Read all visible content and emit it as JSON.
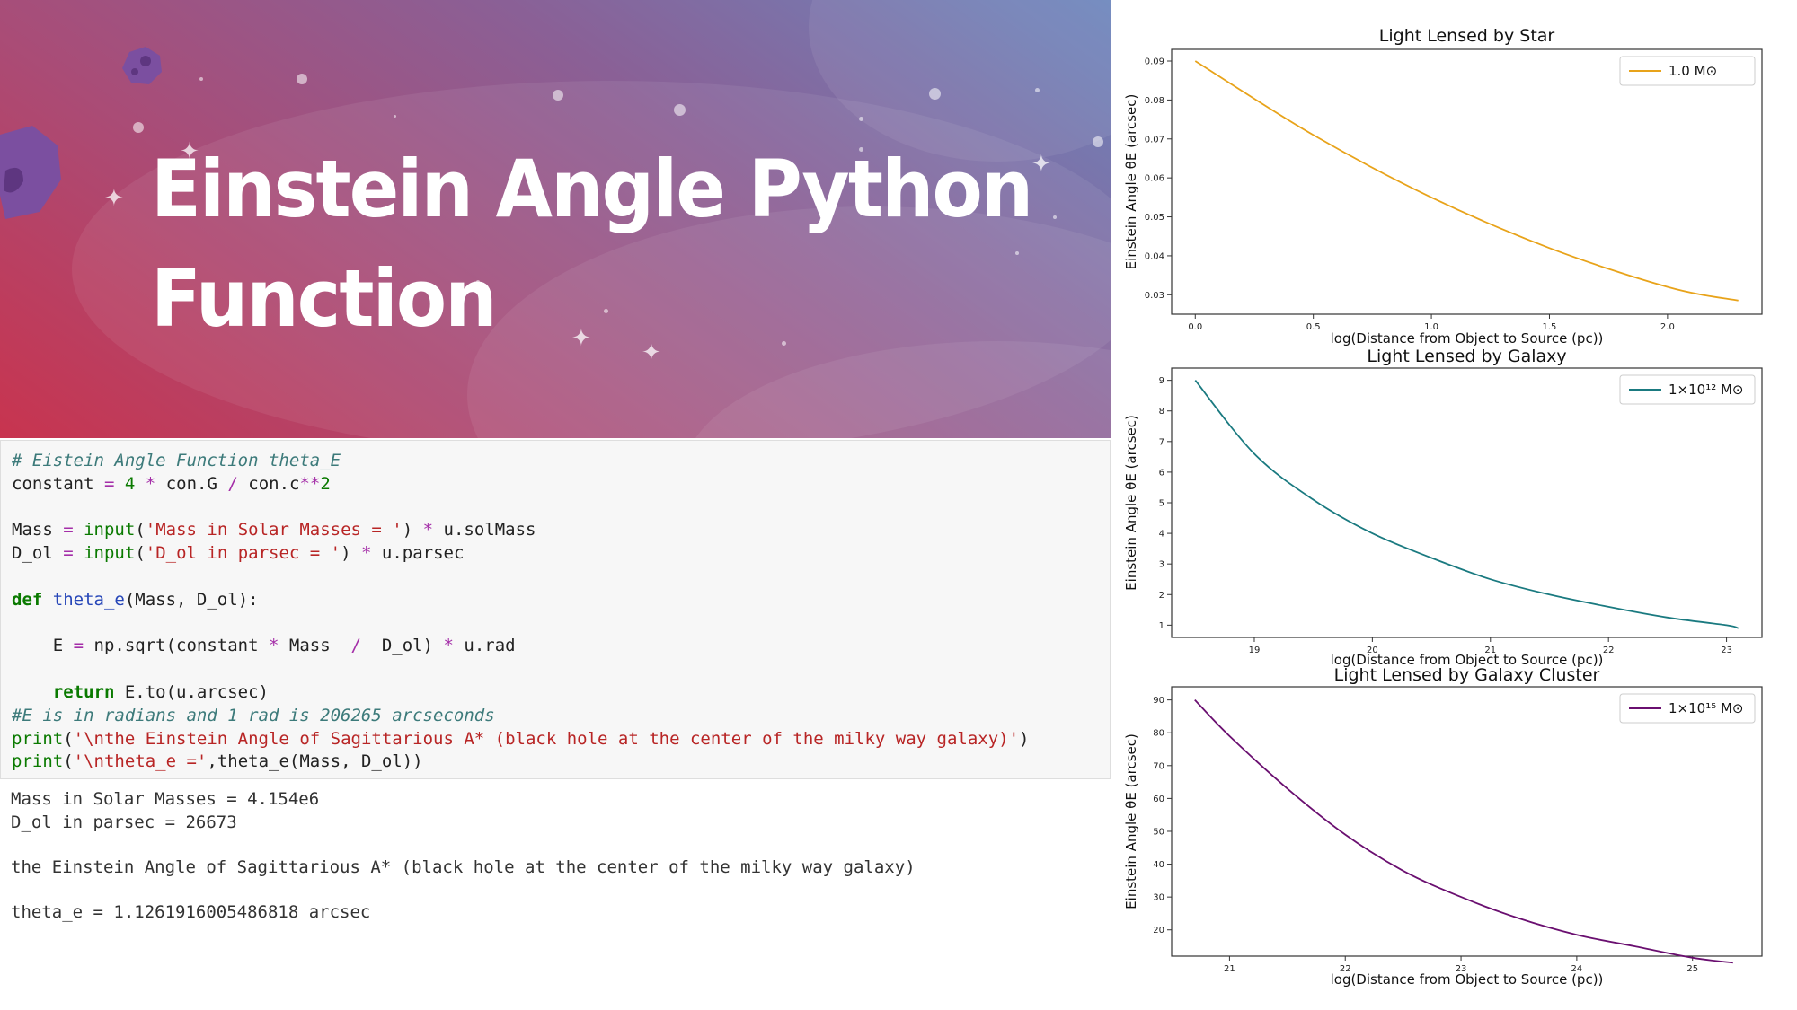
{
  "banner": {
    "title_line1": "Einstein Angle Python",
    "title_line2": "Function"
  },
  "code_cell": {
    "comment": "# Eistein Angle Function theta_E",
    "constant_name": "constant",
    "constant_expr_a": "4",
    "constant_expr_b": "con.G",
    "constant_expr_c": "con.c",
    "constant_expr_d": "2",
    "mass_prompt": "'Mass in Solar Masses = '",
    "dol_prompt": "'D_ol in parsec = '",
    "def_name": "theta_e",
    "result_comment": "#E is in radians and 1 rad is 206265 arcseconds",
    "print_text": "'\\nthe Einstein Angle of Sagittarious A* (black hole at the center of the milky way galaxy)'",
    "print_theta": "'\\ntheta_e ='"
  },
  "output": {
    "lines": [
      "Mass in Solar Masses = 4.154e6",
      "D_ol in parsec = 26673",
      "",
      "the Einstein Angle of Sagittarious A* (black hole at the center of the milky way galaxy)",
      "",
      "theta_e = 1.1261916005486818 arcsec"
    ]
  },
  "colors": {
    "star": "#e8a31a",
    "galaxy": "#1a7a80",
    "cluster": "#6a0f70"
  },
  "chart_data": [
    {
      "type": "line",
      "title": "Light Lensed by Star",
      "xlabel": "log(Distance from Object to Source (pc))",
      "ylabel": "Einstein Angle θE (arcsec)",
      "xlim": [
        -0.1,
        2.4
      ],
      "ylim": [
        0.025,
        0.093
      ],
      "xticks": [
        "0.0",
        "0.5",
        "1.0",
        "1.5",
        "2.0"
      ],
      "xtick_values": [
        0.0,
        0.5,
        1.0,
        1.5,
        2.0
      ],
      "yticks": [
        "0.03",
        "0.04",
        "0.05",
        "0.06",
        "0.07",
        "0.08",
        "0.09"
      ],
      "ytick_values": [
        0.03,
        0.04,
        0.05,
        0.06,
        0.07,
        0.08,
        0.09
      ],
      "legend": "1.0 M⊙",
      "legend_position": "top-right",
      "series": [
        {
          "name": "1.0 M⊙",
          "color": "#e8a31a",
          "x": [
            0.0,
            0.5,
            1.0,
            1.5,
            2.0,
            2.3
          ],
          "y": [
            0.09,
            0.071,
            0.055,
            0.042,
            0.032,
            0.0285
          ]
        }
      ]
    },
    {
      "type": "line",
      "title": "Light Lensed by Galaxy",
      "xlabel": "log(Distance from Object to Source (pc))",
      "ylabel": "Einstein Angle θE (arcsec)",
      "xlim": [
        18.3,
        23.3
      ],
      "ylim": [
        0.6,
        9.4
      ],
      "xticks": [
        "19",
        "20",
        "21",
        "22",
        "23"
      ],
      "xtick_values": [
        19,
        20,
        21,
        22,
        23
      ],
      "yticks": [
        "1",
        "2",
        "3",
        "4",
        "5",
        "6",
        "7",
        "8",
        "9"
      ],
      "ytick_values": [
        1,
        2,
        3,
        4,
        5,
        6,
        7,
        8,
        9
      ],
      "legend": "1×10¹² M⊙",
      "legend_position": "top-right",
      "series": [
        {
          "name": "1×10¹² M⊙",
          "color": "#1a7a80",
          "x": [
            18.5,
            19,
            19.5,
            20,
            20.5,
            21,
            21.5,
            22,
            22.5,
            23,
            23.1
          ],
          "y": [
            9.0,
            6.6,
            5.1,
            4.0,
            3.2,
            2.5,
            2.0,
            1.6,
            1.25,
            1.0,
            0.9
          ]
        }
      ]
    },
    {
      "type": "line",
      "title": "Light Lensed by Galaxy Cluster",
      "xlabel": "log(Distance from Object to Source (pc))",
      "ylabel": "Einstein Angle θE (arcsec)",
      "xlim": [
        20.5,
        25.6
      ],
      "ylim": [
        12,
        94
      ],
      "xticks": [
        "21",
        "22",
        "23",
        "24",
        "25"
      ],
      "xtick_values": [
        21,
        22,
        23,
        24,
        25
      ],
      "yticks": [
        "20",
        "30",
        "40",
        "50",
        "60",
        "70",
        "80",
        "90"
      ],
      "ytick_values": [
        20,
        30,
        40,
        50,
        60,
        70,
        80,
        90
      ],
      "legend": "1×10¹⁵ M⊙",
      "legend_position": "top-right",
      "series": [
        {
          "name": "1×10¹⁵ M⊙",
          "color": "#6a0f70",
          "x": [
            20.7,
            21,
            21.5,
            22,
            22.5,
            23,
            23.5,
            24,
            24.5,
            25,
            25.35
          ],
          "y": [
            90,
            79,
            63,
            49,
            38,
            30,
            23.5,
            18.5,
            15,
            11.5,
            10
          ]
        }
      ]
    }
  ]
}
